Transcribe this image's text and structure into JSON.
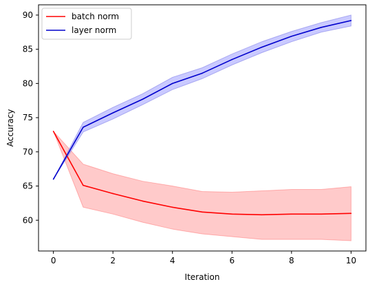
{
  "chart_data": {
    "type": "line",
    "title": "",
    "xlabel": "Iteration",
    "ylabel": "Accuracy",
    "xlim": [
      -0.5,
      10.5
    ],
    "ylim": [
      55.5,
      91.5
    ],
    "xticks": [
      0,
      2,
      4,
      6,
      8,
      10
    ],
    "yticks": [
      60,
      65,
      70,
      75,
      80,
      85,
      90
    ],
    "grid": false,
    "legend_position": "top-left",
    "x": [
      0,
      1,
      2,
      3,
      4,
      5,
      6,
      7,
      8,
      9,
      10
    ],
    "series": [
      {
        "name": "batch norm",
        "color": "#ff0000",
        "band_color": "#ffb3b3",
        "values": [
          73.0,
          65.1,
          63.9,
          62.8,
          61.9,
          61.2,
          60.9,
          60.8,
          60.9,
          60.9,
          61.0
        ],
        "lower": [
          73.0,
          61.9,
          60.9,
          59.7,
          58.7,
          58.0,
          57.6,
          57.2,
          57.2,
          57.2,
          57.0
        ],
        "upper": [
          73.0,
          68.2,
          66.8,
          65.7,
          65.0,
          64.2,
          64.1,
          64.3,
          64.5,
          64.5,
          64.9
        ]
      },
      {
        "name": "layer norm",
        "color": "#0000cc",
        "band_color": "#b3b3ff",
        "values": [
          66.0,
          73.6,
          75.7,
          77.7,
          80.0,
          81.5,
          83.5,
          85.3,
          86.9,
          88.2,
          89.2
        ],
        "lower": [
          66.0,
          72.9,
          74.8,
          76.9,
          79.1,
          80.7,
          82.7,
          84.5,
          86.1,
          87.5,
          88.4
        ],
        "upper": [
          66.0,
          74.3,
          76.5,
          78.5,
          80.9,
          82.3,
          84.3,
          86.1,
          87.6,
          88.9,
          90.0
        ]
      }
    ]
  }
}
